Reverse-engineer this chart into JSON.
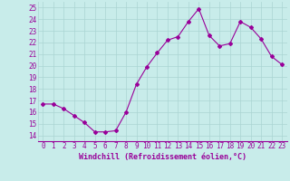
{
  "x": [
    0,
    1,
    2,
    3,
    4,
    5,
    6,
    7,
    8,
    9,
    10,
    11,
    12,
    13,
    14,
    15,
    16,
    17,
    18,
    19,
    20,
    21,
    22,
    23
  ],
  "y": [
    16.7,
    16.7,
    16.3,
    15.7,
    15.1,
    14.3,
    14.3,
    14.4,
    16.0,
    18.4,
    19.9,
    21.1,
    22.2,
    22.5,
    23.8,
    24.9,
    22.6,
    21.7,
    21.9,
    23.8,
    23.3,
    22.3,
    20.8,
    20.1
  ],
  "line_color": "#990099",
  "marker": "D",
  "marker_size": 2.0,
  "bg_color": "#c8ecea",
  "grid_color": "#aad4d2",
  "tick_color": "#990099",
  "xlabel": "Windchill (Refroidissement éolien,°C)",
  "xlabel_color": "#990099",
  "ylabel_ticks": [
    14,
    15,
    16,
    17,
    18,
    19,
    20,
    21,
    22,
    23,
    24,
    25
  ],
  "xlim": [
    -0.5,
    23.5
  ],
  "ylim": [
    13.5,
    25.5
  ],
  "xtick_labels": [
    "0",
    "1",
    "2",
    "3",
    "4",
    "5",
    "6",
    "7",
    "8",
    "9",
    "10",
    "11",
    "12",
    "13",
    "14",
    "15",
    "16",
    "17",
    "18",
    "19",
    "20",
    "21",
    "22",
    "23"
  ],
  "font_size": 5.5,
  "xlabel_font_size": 6.0,
  "line_width": 0.8,
  "spine_color": "#7a7a7a"
}
